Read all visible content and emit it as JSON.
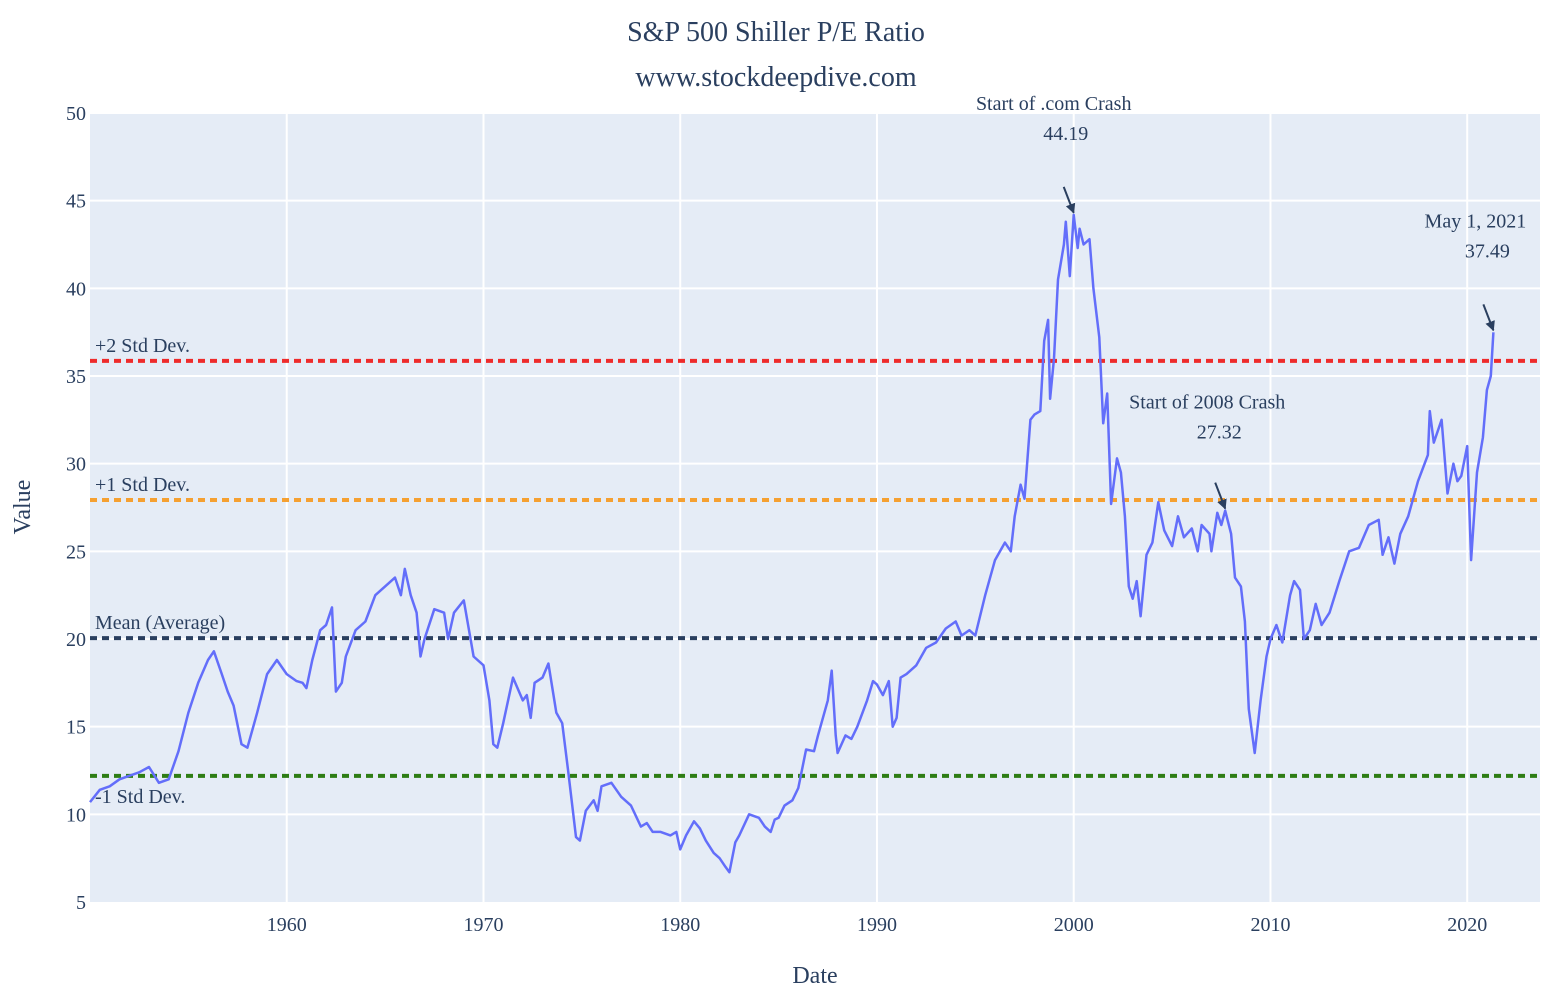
{
  "chart_data": {
    "type": "line",
    "title": "S&P 500 Shiller P/E Ratio",
    "subtitle": "www.stockdeepdive.com",
    "xlabel": "Date",
    "ylabel": "Value",
    "xlim": [
      1950,
      2023.7
    ],
    "ylim": [
      5,
      50
    ],
    "grid": true,
    "x_ticks": [
      1960,
      1970,
      1980,
      1990,
      2000,
      2010,
      2020
    ],
    "y_ticks": [
      5,
      10,
      15,
      20,
      25,
      30,
      35,
      40,
      45,
      50
    ],
    "line_color": "#636efa",
    "x": [
      1950.0,
      1950.5,
      1951,
      1951.5,
      1952,
      1952.5,
      1953,
      1953.5,
      1954,
      1954.5,
      1955,
      1955.5,
      1956,
      1956.3,
      1956.7,
      1957,
      1957.3,
      1957.7,
      1958,
      1958.5,
      1959,
      1959.5,
      1960,
      1960.5,
      1960.8,
      1961,
      1961.3,
      1961.7,
      1962,
      1962.3,
      1962.5,
      1962.8,
      1963,
      1963.5,
      1964,
      1964.5,
      1965,
      1965.5,
      1965.8,
      1966,
      1966.3,
      1966.6,
      1966.8,
      1967,
      1967.5,
      1968,
      1968.2,
      1968.5,
      1969,
      1969.5,
      1970,
      1970.3,
      1970.5,
      1970.7,
      1971,
      1971.5,
      1972,
      1972.2,
      1972.4,
      1972.6,
      1973,
      1973.3,
      1973.7,
      1974,
      1974.3,
      1974.7,
      1974.9,
      1975.2,
      1975.6,
      1975.8,
      1976,
      1976.5,
      1977,
      1977.5,
      1978,
      1978.3,
      1978.6,
      1979,
      1979.5,
      1979.8,
      1980,
      1980.3,
      1980.7,
      1981,
      1981.3,
      1981.7,
      1982,
      1982.3,
      1982.5,
      1982.8,
      1983,
      1983.5,
      1984,
      1984.3,
      1984.6,
      1984.8,
      1985,
      1985.3,
      1985.7,
      1986,
      1986.4,
      1986.8,
      1987,
      1987.5,
      1987.7,
      1987.9,
      1988,
      1988.4,
      1988.7,
      1989,
      1989.5,
      1989.8,
      1990,
      1990.3,
      1990.6,
      1990.8,
      1991,
      1991.2,
      1991.5,
      1992,
      1992.5,
      1993,
      1993.5,
      1994,
      1994.3,
      1994.7,
      1995,
      1995.5,
      1996,
      1996.5,
      1996.8,
      1997,
      1997.3,
      1997.5,
      1997.8,
      1998,
      1998.3,
      1998.5,
      1998.7,
      1998.8,
      1999,
      1999.2,
      1999.5,
      1999.6,
      1999.8,
      2000,
      2000.2,
      2000.3,
      2000.5,
      2000.8,
      2001,
      2001.3,
      2001.5,
      2001.7,
      2001.9,
      2002.2,
      2002.4,
      2002.6,
      2002.8,
      2003,
      2003.2,
      2003.4,
      2003.7,
      2004,
      2004.3,
      2004.6,
      2005,
      2005.3,
      2005.6,
      2006,
      2006.3,
      2006.5,
      2006.9,
      2007,
      2007.3,
      2007.5,
      2007.7,
      2008,
      2008.2,
      2008.5,
      2008.7,
      2008.9,
      2009.2,
      2009.5,
      2009.8,
      2010,
      2010.3,
      2010.6,
      2011,
      2011.2,
      2011.5,
      2011.7,
      2012,
      2012.3,
      2012.6,
      2013,
      2013.5,
      2014,
      2014.5,
      2015,
      2015.5,
      2015.7,
      2016,
      2016.3,
      2016.6,
      2017,
      2017.5,
      2018,
      2018.1,
      2018.3,
      2018.7,
      2019,
      2019.3,
      2019.5,
      2019.7,
      2020,
      2020.2,
      2020.5,
      2020.8,
      2021,
      2021.2,
      2021.33
    ],
    "y": [
      10.7,
      11.4,
      11.6,
      12.0,
      12.2,
      12.4,
      12.7,
      11.8,
      12.0,
      13.6,
      15.8,
      17.5,
      18.8,
      19.3,
      18.0,
      17.0,
      16.2,
      14.0,
      13.8,
      15.8,
      18.0,
      18.8,
      18.0,
      17.6,
      17.5,
      17.2,
      18.8,
      20.5,
      20.8,
      21.8,
      17.0,
      17.5,
      19.0,
      20.5,
      21.0,
      22.5,
      23.0,
      23.5,
      22.5,
      24.0,
      22.5,
      21.5,
      19.0,
      20.0,
      21.7,
      21.5,
      20.0,
      21.5,
      22.2,
      19.0,
      18.5,
      16.5,
      14.0,
      13.8,
      15.2,
      17.8,
      16.5,
      16.8,
      15.5,
      17.5,
      17.8,
      18.6,
      15.8,
      15.2,
      12.5,
      8.7,
      8.5,
      10.2,
      10.8,
      10.2,
      11.6,
      11.8,
      11.0,
      10.5,
      9.3,
      9.5,
      9.0,
      9.0,
      8.8,
      9.0,
      8.0,
      8.8,
      9.6,
      9.2,
      8.5,
      7.8,
      7.5,
      7.0,
      6.7,
      8.4,
      8.8,
      10.0,
      9.8,
      9.3,
      9.0,
      9.7,
      9.8,
      10.5,
      10.8,
      11.5,
      13.7,
      13.6,
      14.5,
      16.5,
      18.2,
      14.5,
      13.5,
      14.5,
      14.3,
      15.0,
      16.5,
      17.6,
      17.4,
      16.8,
      17.6,
      15.0,
      15.5,
      17.8,
      18.0,
      18.5,
      19.5,
      19.8,
      20.6,
      21.0,
      20.2,
      20.5,
      20.2,
      22.5,
      24.5,
      25.5,
      25.0,
      27.0,
      28.8,
      28.0,
      32.5,
      32.8,
      33.0,
      37.0,
      38.2,
      33.7,
      36.0,
      40.5,
      42.5,
      43.8,
      40.7,
      44.19,
      42.3,
      43.4,
      42.5,
      42.8,
      40.0,
      37.2,
      32.3,
      34.0,
      27.7,
      30.3,
      29.5,
      27.0,
      23.0,
      22.3,
      23.3,
      21.3,
      24.8,
      25.5,
      27.8,
      26.2,
      25.3,
      27.0,
      25.8,
      26.3,
      25.0,
      26.5,
      26.0,
      25.0,
      27.2,
      26.5,
      27.32,
      26.0,
      23.5,
      23.0,
      21.0,
      16.0,
      13.5,
      16.5,
      19.0,
      20.0,
      20.8,
      19.8,
      22.5,
      23.3,
      22.8,
      20.0,
      20.5,
      22.0,
      20.8,
      21.5,
      23.3,
      25.0,
      25.2,
      26.5,
      26.8,
      24.8,
      25.8,
      24.3,
      26.0,
      27.0,
      29.0,
      30.5,
      33.0,
      31.2,
      32.5,
      28.3,
      30.0,
      29.0,
      29.3,
      31.0,
      24.5,
      29.5,
      31.5,
      34.2,
      35.0,
      37.49
    ],
    "reference_lines": [
      {
        "label": "+2 Std Dev.",
        "value": 35.86,
        "color": "#ee2b2b"
      },
      {
        "label": "+1 Std Dev.",
        "value": 27.93,
        "color": "#f5a031"
      },
      {
        "label": "Mean (Average)",
        "value": 20.05,
        "color": "#2a3f5f"
      },
      {
        "label": "-1 Std Dev.",
        "value": 12.19,
        "color": "#2e7d14"
      }
    ],
    "annotations": [
      {
        "label": "Start of .com Crash",
        "value_text": "44.19",
        "x": 2000.0,
        "y": 44.19
      },
      {
        "label": "Start of 2008 Crash",
        "value_text": "27.32",
        "x": 2007.7,
        "y": 27.32
      },
      {
        "label": "May 1, 2021",
        "value_text": "37.49",
        "x": 2021.33,
        "y": 37.49
      }
    ],
    "colors": {
      "plot_bg": "#e5ecf6",
      "grid": "#ffffff",
      "text": "#2a3f5f"
    }
  }
}
